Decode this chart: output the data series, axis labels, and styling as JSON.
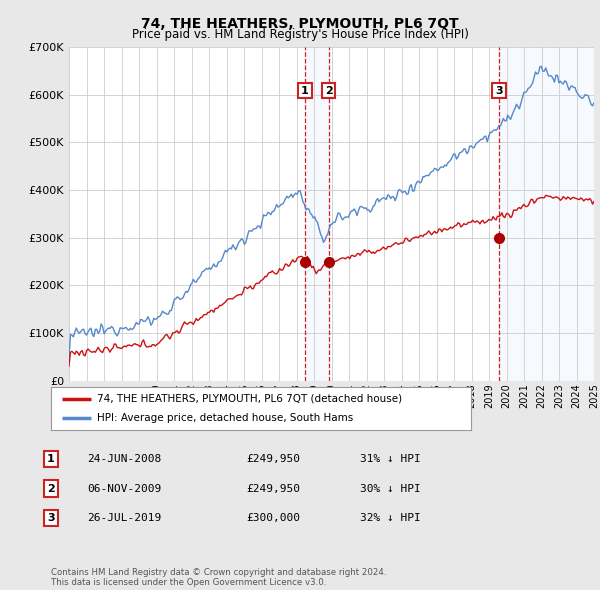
{
  "title": "74, THE HEATHERS, PLYMOUTH, PL6 7QT",
  "subtitle": "Price paid vs. HM Land Registry's House Price Index (HPI)",
  "ylim": [
    0,
    700000
  ],
  "yticks": [
    0,
    100000,
    200000,
    300000,
    400000,
    500000,
    600000,
    700000
  ],
  "background_color": "#e8e8e8",
  "plot_bg_color": "#ffffff",
  "grid_color": "#cccccc",
  "hpi_line_color": "#5588cc",
  "price_line_color": "#cc1111",
  "sale_marker_color": "#aa0000",
  "vline_color": "#cc2222",
  "shade_color": "#ddeeff",
  "annotation_box_edgecolor": "#cc2222",
  "legend_entries": [
    "74, THE HEATHERS, PLYMOUTH, PL6 7QT (detached house)",
    "HPI: Average price, detached house, South Hams"
  ],
  "footer_text": "Contains HM Land Registry data © Crown copyright and database right 2024.\nThis data is licensed under the Open Government Licence v3.0.",
  "x_start_year": 1995,
  "x_end_year": 2025,
  "trans_years": [
    2008.48,
    2009.84,
    2019.57
  ],
  "trans_prices": [
    249950,
    249950,
    300000
  ],
  "trans_labels": [
    "1",
    "2",
    "3"
  ],
  "table_rows": [
    [
      "1",
      "24-JUN-2008",
      "£249,950",
      "31% ↓ HPI"
    ],
    [
      "2",
      "06-NOV-2009",
      "£249,950",
      "30% ↓ HPI"
    ],
    [
      "3",
      "26-JUL-2019",
      "£300,000",
      "32% ↓ HPI"
    ]
  ]
}
